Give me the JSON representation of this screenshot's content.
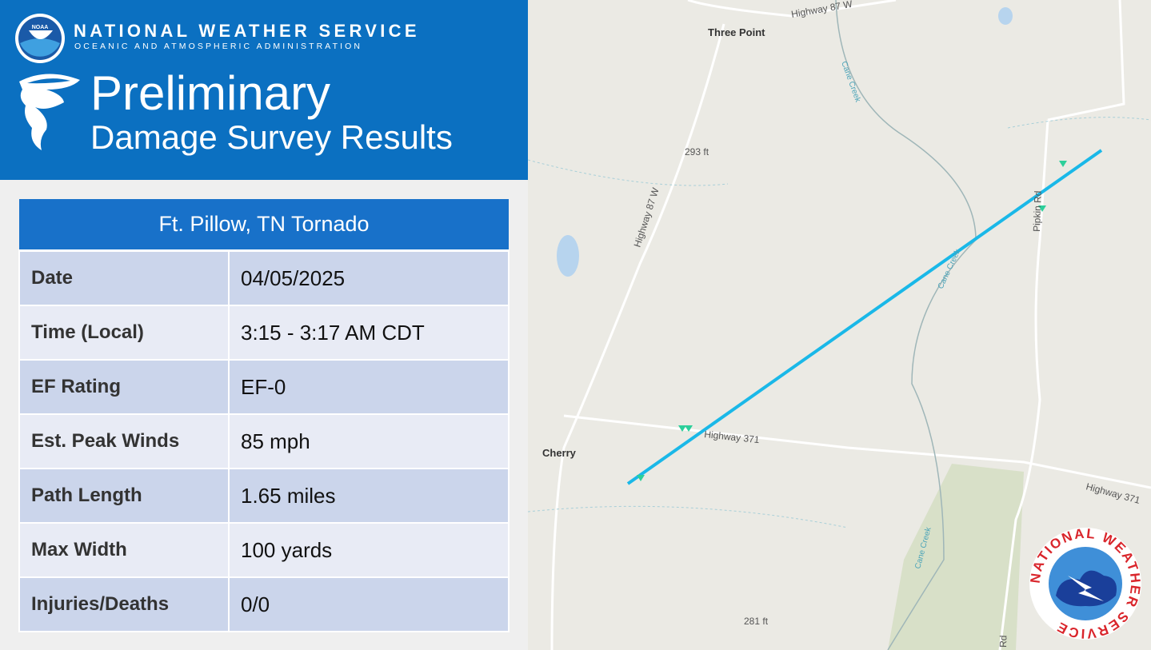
{
  "header": {
    "noaa_logo": "NOAA",
    "org": "NATIONAL WEATHER SERVICE",
    "subtitle": "OCEANIC AND ATMOSPHERIC ADMINISTRATION",
    "title_line1": "Preliminary",
    "title_line2": "Damage Survey Results"
  },
  "table": {
    "title": "Ft. Pillow, TN Tornado",
    "rows": [
      [
        "Date",
        "04/05/2025"
      ],
      [
        "Time (Local)",
        "3:15 - 3:17 AM CDT"
      ],
      [
        "EF Rating",
        "EF-0"
      ],
      [
        "Est. Peak Winds",
        "85 mph"
      ],
      [
        "Path Length",
        "1.65 miles"
      ],
      [
        "Max Width",
        "100 yards"
      ],
      [
        "Injuries/Deaths",
        "0/0"
      ]
    ]
  },
  "map": {
    "labels": {
      "three_point": "Three Point",
      "highway_87_top": "Highway 87 W",
      "highway_87_side": "Highway 87 W",
      "cane_creek_1": "Cane Creek",
      "cane_creek_2": "Cane Creek",
      "cane_creek_3": "Cane Creek",
      "elev_293": "293 ft",
      "elev_281": "281 ft",
      "cherry": "Cherry",
      "highway_371_1": "Highway 371",
      "highway_371_2": "Highway 371",
      "pipkin_rd": "Pipkin Rd",
      "rd_bottom": "Rd"
    },
    "nws_logo": "NATIONAL WEATHER SERVICE"
  }
}
